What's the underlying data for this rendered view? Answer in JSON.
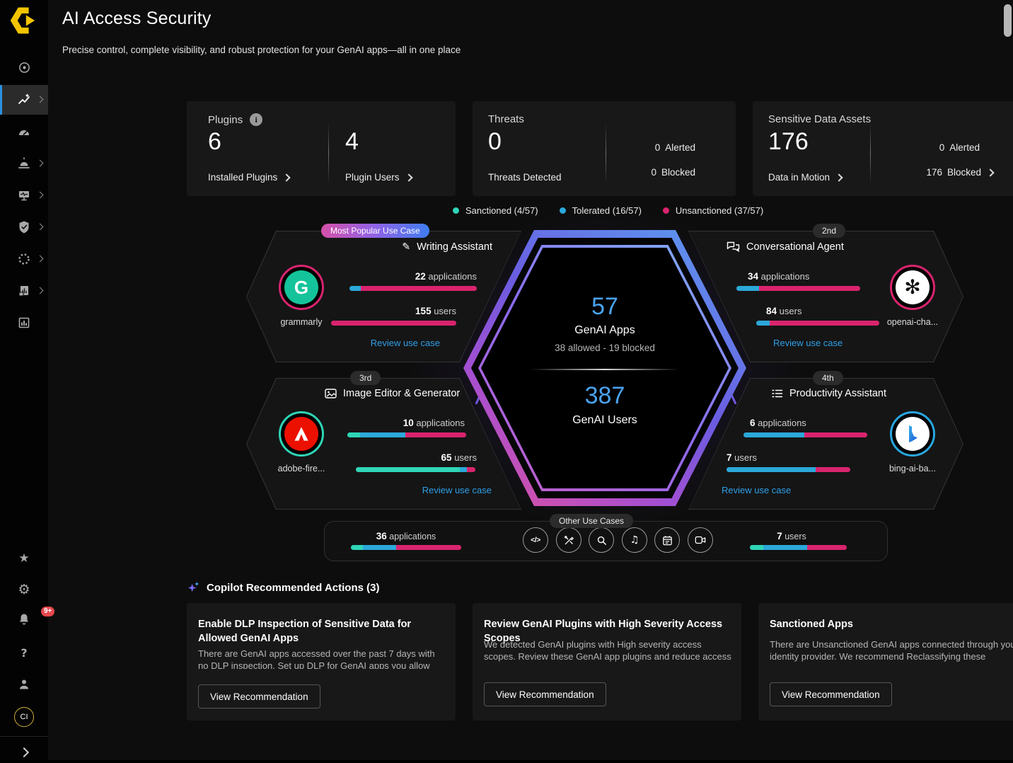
{
  "app": {
    "title": "AI Access Security",
    "subtitle": "Precise control, complete visibility, and robust protection for your GenAI apps—all in one place"
  },
  "icons": {
    "info": "i",
    "pencil": "✎",
    "music": "♫",
    "code": "</>",
    "star": "★",
    "gear": "⚙",
    "help": "?",
    "openai_glyph": "✻",
    "grammarly_glyph": "G"
  },
  "sidebar": {
    "notification_badge": "9+",
    "avatar": "CI"
  },
  "stat_cards": {
    "plugins": {
      "title": "Plugins",
      "col1_value": "6",
      "col1_label": "Installed Plugins",
      "col2_value": "4",
      "col2_label": "Plugin Users"
    },
    "threats": {
      "title": "Threats",
      "value": "0",
      "label": "Threats Detected",
      "alerted_value": "0",
      "alerted_label": "Alerted",
      "blocked_value": "0",
      "blocked_label": "Blocked"
    },
    "sensitive": {
      "title": "Sensitive Data Assets",
      "value": "176",
      "label": "Data in Motion",
      "alerted_value": "0",
      "alerted_label": "Alerted",
      "blocked_value": "176",
      "blocked_label": "Blocked"
    }
  },
  "legend": {
    "items": [
      {
        "label": "Sanctioned (4/57)",
        "color": "#2fd5b6"
      },
      {
        "label": "Tolerated (16/57)",
        "color": "#2ba8d9"
      },
      {
        "label": "Unsanctioned (37/57)",
        "color": "#d9246e"
      }
    ]
  },
  "hexagon": {
    "apps_value": "57",
    "apps_label": "GenAI Apps",
    "apps_sub": "38 allowed - 19 blocked",
    "users_value": "387",
    "users_label": "GenAI Users"
  },
  "use_cases": [
    {
      "badge": "Most Popular Use Case",
      "title": "Writing Assistant",
      "app_name": "grammarly",
      "apps_value": "22",
      "apps_unit": "applications",
      "users_value": "155",
      "users_unit": "users",
      "link": "Review use case",
      "apps_bar": [
        {
          "color": "#2ba8d9",
          "pct": 9
        },
        {
          "color": "#d9246e",
          "pct": 91
        }
      ],
      "users_bar": [
        {
          "color": "#d9246e",
          "pct": 100
        }
      ]
    },
    {
      "badge": "2nd",
      "title": "Conversational Agent",
      "app_name": "openai-cha...",
      "apps_value": "34",
      "apps_unit": "applications",
      "users_value": "84",
      "users_unit": "users",
      "link": "Review use case",
      "apps_bar": [
        {
          "color": "#2ba8d9",
          "pct": 18
        },
        {
          "color": "#d9246e",
          "pct": 82
        }
      ],
      "users_bar": [
        {
          "color": "#2ba8d9",
          "pct": 11
        },
        {
          "color": "#d9246e",
          "pct": 89
        }
      ]
    },
    {
      "badge": "3rd",
      "title": "Image Editor & Generator",
      "app_name": "adobe-fire...",
      "apps_value": "10",
      "apps_unit": "applications",
      "users_value": "65",
      "users_unit": "users",
      "link": "Review use case",
      "apps_bar": [
        {
          "color": "#2fd5b6",
          "pct": 11
        },
        {
          "color": "#2ba8d9",
          "pct": 38
        },
        {
          "color": "#d9246e",
          "pct": 51
        }
      ],
      "users_bar": [
        {
          "color": "#2fd5b6",
          "pct": 87
        },
        {
          "color": "#2ba8d9",
          "pct": 6
        },
        {
          "color": "#d9246e",
          "pct": 7
        }
      ]
    },
    {
      "badge": "4th",
      "title": "Productivity Assistant",
      "app_name": "bing-ai-ba...",
      "apps_value": "6",
      "apps_unit": "applications",
      "users_value": "7",
      "users_unit": "users",
      "link": "Review use case",
      "apps_bar": [
        {
          "color": "#2ba8d9",
          "pct": 49
        },
        {
          "color": "#d9246e",
          "pct": 51
        }
      ],
      "users_bar": [
        {
          "color": "#2ba8d9",
          "pct": 72
        },
        {
          "color": "#d9246e",
          "pct": 28
        }
      ]
    }
  ],
  "other_use_cases": {
    "badge": "Other Use Cases",
    "apps_value": "36",
    "apps_unit": "applications",
    "users_value": "7",
    "users_unit": "users",
    "apps_bar": [
      {
        "color": "#2fd5b6",
        "pct": 11
      },
      {
        "color": "#2ba8d9",
        "pct": 30
      },
      {
        "color": "#d9246e",
        "pct": 59
      }
    ],
    "users_bar": [
      {
        "color": "#2fd5b6",
        "pct": 14
      },
      {
        "color": "#2ba8d9",
        "pct": 45
      },
      {
        "color": "#d9246e",
        "pct": 41
      }
    ]
  },
  "copilot": {
    "title": "Copilot Recommended Actions (3)",
    "cards": [
      {
        "title": "Enable DLP Inspection of Sensitive Data for Allowed GenAI Apps",
        "body": "There are GenAI apps accessed over the past 7 days with no DLP inspection. Set up DLP for GenAI apps you allow",
        "button": "View Recommendation"
      },
      {
        "title": "Review GenAI Plugins with High Severity Access Scopes",
        "body": "We detected GenAI plugins with High severity access scopes. Review these GenAI app plugins and reduce access",
        "button": "View Recommendation"
      },
      {
        "title": "Sanctioned Apps",
        "body": "There are Unsanctioned GenAI apps connected through your identity provider. We recommend Reclassifying these",
        "button": "View Recommendation"
      }
    ]
  }
}
